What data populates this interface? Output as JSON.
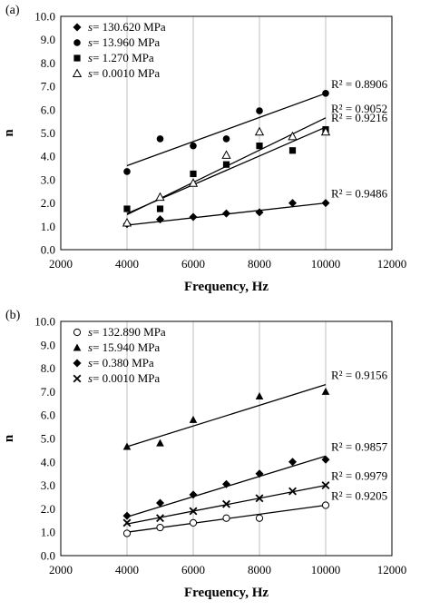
{
  "chart_data": [
    {
      "type": "scatter",
      "panel_label": "(a)",
      "xlabel": "Frequency, Hz",
      "ylabel": "n",
      "xlim": [
        2000,
        12000
      ],
      "ylim": [
        0.0,
        10.0
      ],
      "x_ticks": [
        "2000",
        "4000",
        "6000",
        "8000",
        "10000",
        "12000"
      ],
      "y_ticks": [
        "0.0",
        "1.0",
        "2.0",
        "3.0",
        "4.0",
        "5.0",
        "6.0",
        "7.0",
        "8.0",
        "9.0",
        "10.0"
      ],
      "grid": "vertical",
      "legend_position": "top-left",
      "series": [
        {
          "name": "s= 130.620 MPa",
          "legend_prefix": "s",
          "legend_value": "= 130.620 MPa",
          "marker": "diamond",
          "x": [
            4000,
            5000,
            6000,
            7000,
            8000,
            9000,
            10000
          ],
          "y": [
            1.1,
            1.3,
            1.4,
            1.55,
            1.6,
            2.0,
            2.0
          ],
          "trend": [
            [
              4000,
              1.05
            ],
            [
              10000,
              2.0
            ]
          ],
          "r2": "R² = 0.9486"
        },
        {
          "name": "s= 13.960 MPa",
          "legend_prefix": "s",
          "legend_value": "= 13.960 MPa",
          "marker": "circle",
          "x": [
            4000,
            5000,
            6000,
            7000,
            8000,
            10000
          ],
          "y": [
            3.35,
            4.75,
            4.45,
            4.75,
            5.95,
            6.7
          ],
          "trend": [
            [
              4000,
              3.6
            ],
            [
              10000,
              6.7
            ]
          ],
          "r2": "R² = 0.8906"
        },
        {
          "name": "s= 1.270 MPa",
          "legend_prefix": "s",
          "legend_value": "= 1.270 MPa",
          "marker": "square",
          "x": [
            4000,
            5000,
            6000,
            7000,
            8000,
            9000,
            10000
          ],
          "y": [
            1.75,
            1.75,
            3.25,
            3.65,
            4.45,
            4.25,
            5.15
          ],
          "trend": [
            [
              4000,
              1.5
            ],
            [
              10000,
              5.65
            ]
          ],
          "r2": "R² = 0.9052"
        },
        {
          "name": "s= 0.0010 MPa",
          "legend_prefix": "s",
          "legend_value": "= 0.0010 MPa",
          "marker": "triangle-open",
          "x": [
            4000,
            5000,
            6000,
            7000,
            8000,
            9000,
            10000
          ],
          "y": [
            1.15,
            2.25,
            2.85,
            4.05,
            5.05,
            4.85,
            5.05
          ],
          "trend": [
            [
              4000,
              1.55
            ],
            [
              10000,
              5.25
            ]
          ],
          "r2": "R² = 0.9216"
        }
      ]
    },
    {
      "type": "scatter",
      "panel_label": "(b)",
      "xlabel": "Frequency, Hz",
      "ylabel": "n",
      "xlim": [
        2000,
        12000
      ],
      "ylim": [
        0.0,
        10.0
      ],
      "x_ticks": [
        "2000",
        "4000",
        "6000",
        "8000",
        "10000",
        "12000"
      ],
      "y_ticks": [
        "0.0",
        "1.0",
        "2.0",
        "3.0",
        "4.0",
        "5.0",
        "6.0",
        "7.0",
        "8.0",
        "9.0",
        "10.0"
      ],
      "grid": "vertical",
      "legend_position": "top-left",
      "series": [
        {
          "name": "s= 132.890 MPa",
          "legend_prefix": "s",
          "legend_value": "= 132.890 MPa",
          "marker": "circle-open",
          "x": [
            4000,
            5000,
            6000,
            7000,
            8000,
            10000
          ],
          "y": [
            0.95,
            1.2,
            1.4,
            1.6,
            1.6,
            2.15
          ],
          "trend": [
            [
              4000,
              1.0
            ],
            [
              10000,
              2.15
            ]
          ],
          "r2": "R² = 0.9205"
        },
        {
          "name": "s= 15.940 MPa",
          "legend_prefix": "s",
          "legend_value": "= 15.940 MPa",
          "marker": "triangle",
          "x": [
            4000,
            5000,
            6000,
            8000,
            10000
          ],
          "y": [
            4.65,
            4.8,
            5.8,
            6.8,
            7.0
          ],
          "trend": [
            [
              4000,
              4.65
            ],
            [
              10000,
              7.3
            ]
          ],
          "r2": "R² = 0.9156"
        },
        {
          "name": "s= 0.380 MPa",
          "legend_prefix": "s",
          "legend_value": "= 0.380 MPa",
          "marker": "diamond",
          "x": [
            4000,
            5000,
            6000,
            7000,
            8000,
            9000,
            10000
          ],
          "y": [
            1.7,
            2.25,
            2.6,
            3.05,
            3.5,
            4.0,
            4.1
          ],
          "trend": [
            [
              4000,
              1.65
            ],
            [
              10000,
              4.25
            ]
          ],
          "r2": "R² = 0.9857"
        },
        {
          "name": "s= 0.0010 MPa",
          "legend_prefix": "s",
          "legend_value": "= 0.0010 MPa",
          "marker": "cross",
          "x": [
            4000,
            5000,
            6000,
            7000,
            8000,
            9000,
            10000
          ],
          "y": [
            1.4,
            1.6,
            1.9,
            2.2,
            2.45,
            2.75,
            3.0
          ],
          "trend": [
            [
              4000,
              1.35
            ],
            [
              10000,
              3.0
            ]
          ],
          "r2": "R² = 0.9979"
        }
      ]
    }
  ]
}
